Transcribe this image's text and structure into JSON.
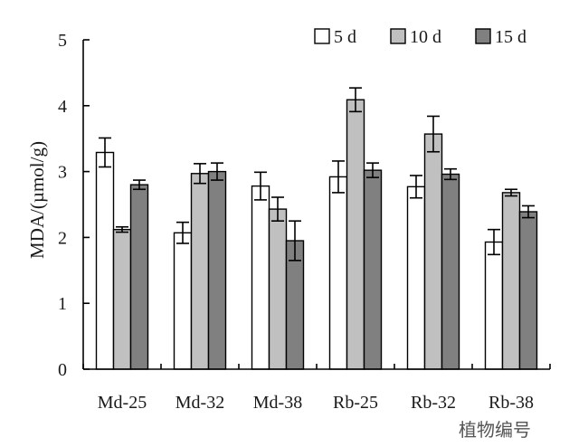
{
  "chart_data": {
    "type": "bar",
    "title": "",
    "ylabel": "MDA/(µmol/g)",
    "xlabel": "植物编号",
    "ylim": [
      0,
      5
    ],
    "yticks": [
      0,
      1,
      2,
      3,
      4,
      5
    ],
    "categories": [
      "Md-25",
      "Md-32",
      "Md-38",
      "Rb-25",
      "Rb-32",
      "Rb-38"
    ],
    "series": [
      {
        "name": "5 d",
        "color": "#ffffff",
        "values": [
          3.29,
          2.07,
          2.78,
          2.92,
          2.77,
          1.93
        ],
        "errors": [
          0.22,
          0.16,
          0.21,
          0.24,
          0.17,
          0.19
        ]
      },
      {
        "name": "10 d",
        "color": "#c0c0c0",
        "values": [
          2.12,
          2.97,
          2.43,
          4.09,
          3.57,
          2.68
        ],
        "errors": [
          0.04,
          0.15,
          0.18,
          0.18,
          0.27,
          0.05
        ]
      },
      {
        "name": "15 d",
        "color": "#808080",
        "values": [
          2.8,
          3.0,
          1.95,
          3.02,
          2.96,
          2.39
        ],
        "errors": [
          0.07,
          0.13,
          0.3,
          0.11,
          0.08,
          0.09
        ]
      }
    ],
    "legend_position": "top-right",
    "grid": false,
    "error_bars": true
  }
}
